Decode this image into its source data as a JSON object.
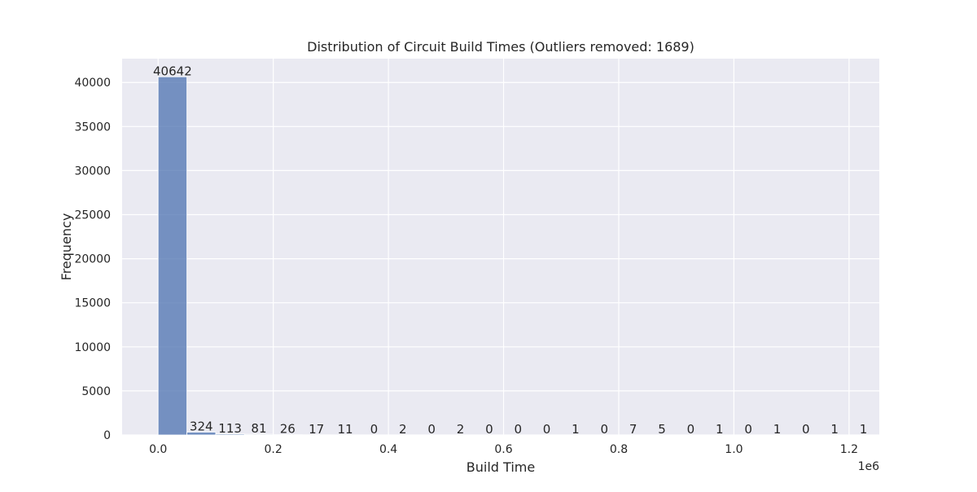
{
  "chart_data": {
    "type": "bar",
    "title": "Distribution of Circuit Build Times (Outliers removed: 1689)",
    "xlabel": "Build Time",
    "ylabel": "Frequency",
    "x_offset_label": "1e6",
    "xlim": [
      -0.0625,
      1.2525
    ],
    "ylim": [
      0,
      42700
    ],
    "grid": true,
    "colors": {
      "bar": "#4c72b0",
      "background": "#eaeaf2",
      "grid": "#ffffff"
    },
    "bin_width": 0.05,
    "bin_edges_start": [
      0.0,
      0.05,
      0.1,
      0.15,
      0.2,
      0.25,
      0.3,
      0.35,
      0.4,
      0.45,
      0.5,
      0.55,
      0.6,
      0.65,
      0.7,
      0.75,
      0.8,
      0.85,
      0.9,
      0.95,
      1.0,
      1.05,
      1.1,
      1.15,
      1.2
    ],
    "values": [
      40642,
      324,
      113,
      81,
      26,
      17,
      11,
      0,
      2,
      0,
      2,
      0,
      0,
      0,
      1,
      0,
      7,
      5,
      0,
      1,
      0,
      1,
      0,
      1,
      1
    ],
    "x_ticks": [
      "0.0",
      "0.2",
      "0.4",
      "0.6",
      "0.8",
      "1.0",
      "1.2"
    ],
    "x_tick_values": [
      0.0,
      0.2,
      0.4,
      0.6,
      0.8,
      1.0,
      1.2
    ],
    "y_ticks": [
      "0",
      "5000",
      "10000",
      "15000",
      "20000",
      "25000",
      "30000",
      "35000",
      "40000"
    ],
    "y_tick_values": [
      0,
      5000,
      10000,
      15000,
      20000,
      25000,
      30000,
      35000,
      40000
    ]
  }
}
